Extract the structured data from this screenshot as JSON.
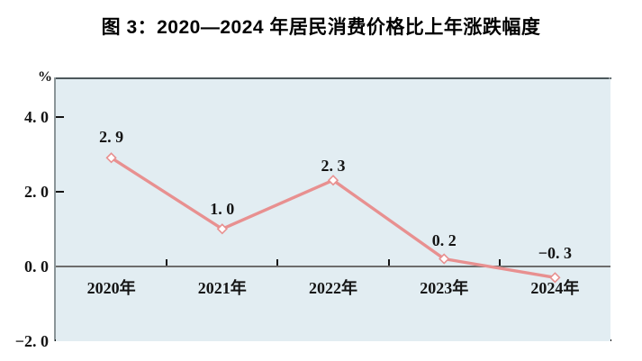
{
  "title": "图 3：2020—2024 年居民消费价格比上年涨跌幅度",
  "chart_data": {
    "type": "line",
    "title": "图 3：2020—2024 年居民消费价格比上年涨跌幅度",
    "categories": [
      "2020年",
      "2021年",
      "2022年",
      "2023年",
      "2024年"
    ],
    "values": [
      2.9,
      1.0,
      2.3,
      0.2,
      -0.3
    ],
    "value_labels": [
      "2. 9",
      "1. 0",
      "2. 3",
      "0. 2",
      "−0. 3"
    ],
    "xlabel": "",
    "ylabel": "%",
    "ylim": [
      -2.0,
      5.0
    ],
    "yticks": [
      {
        "value": 4.0,
        "label": "4. 0"
      },
      {
        "value": 2.0,
        "label": "2. 0"
      },
      {
        "value": 0.0,
        "label": "0. 0"
      },
      {
        "value": -2.0,
        "label": "−2. 0"
      }
    ],
    "grid": false,
    "legend": "none",
    "colors": {
      "line": "#e89090",
      "marker_fill": "#fffdfd",
      "plot_background": "#e2edf2",
      "zero_line": "#6d6d6d",
      "tick": "#141414",
      "text": "#000000"
    }
  }
}
